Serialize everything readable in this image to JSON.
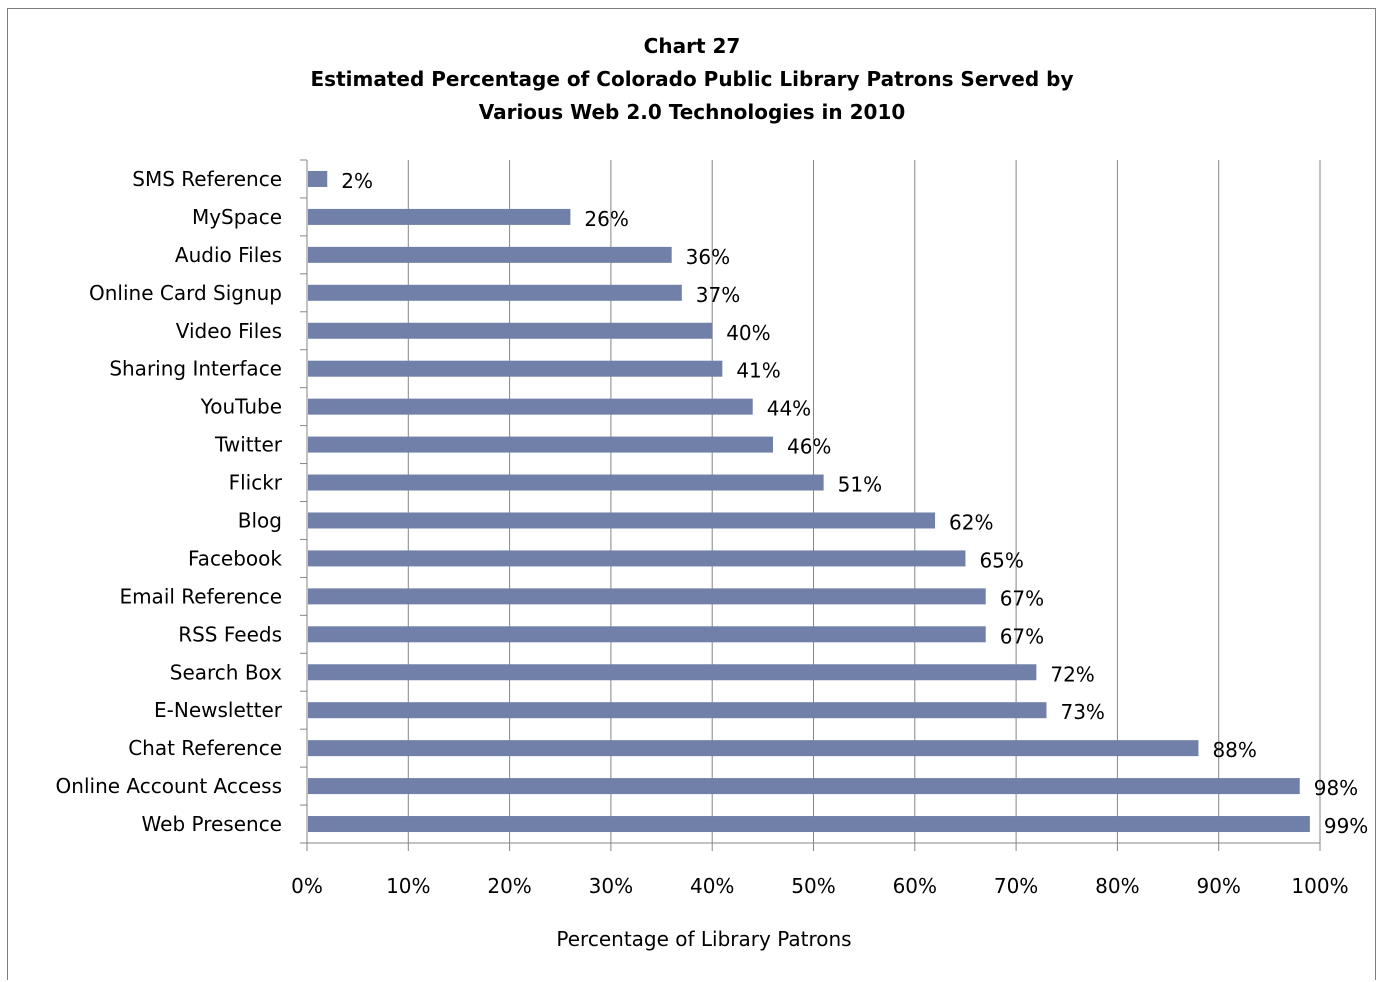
{
  "chart_data": {
    "type": "bar",
    "orientation": "horizontal",
    "title_lines": [
      "Chart 27",
      "Estimated Percentage of Colorado Public Library Patrons Served by",
      "Various Web 2.0 Technologies in 2010"
    ],
    "xlabel": "Percentage of Library Patrons",
    "ylabel": "",
    "xlim": [
      0,
      100
    ],
    "x_ticks": [
      0,
      10,
      20,
      30,
      40,
      50,
      60,
      70,
      80,
      90,
      100
    ],
    "x_tick_labels": [
      "0%",
      "10%",
      "20%",
      "30%",
      "40%",
      "50%",
      "60%",
      "70%",
      "80%",
      "90%",
      "100%"
    ],
    "grid": "vertical",
    "legend": "none",
    "bar_color": "#7080a8",
    "categories": [
      "SMS Reference",
      "MySpace",
      "Audio Files",
      "Online Card Signup",
      "Video Files",
      "Sharing Interface",
      "YouTube",
      "Twitter",
      "Flickr",
      "Blog",
      "Facebook",
      "Email Reference",
      "RSS Feeds",
      "Search Box",
      "E-Newsletter",
      "Chat Reference",
      "Online Account Access",
      "Web Presence"
    ],
    "values": [
      2,
      26,
      36,
      37,
      40,
      41,
      44,
      46,
      51,
      62,
      65,
      67,
      67,
      72,
      73,
      88,
      98,
      99
    ],
    "data_labels": [
      "2%",
      "26%",
      "36%",
      "37%",
      "40%",
      "41%",
      "44%",
      "46%",
      "51%",
      "62%",
      "65%",
      "67%",
      "67%",
      "72%",
      "73%",
      "88%",
      "98%",
      "99%"
    ]
  }
}
